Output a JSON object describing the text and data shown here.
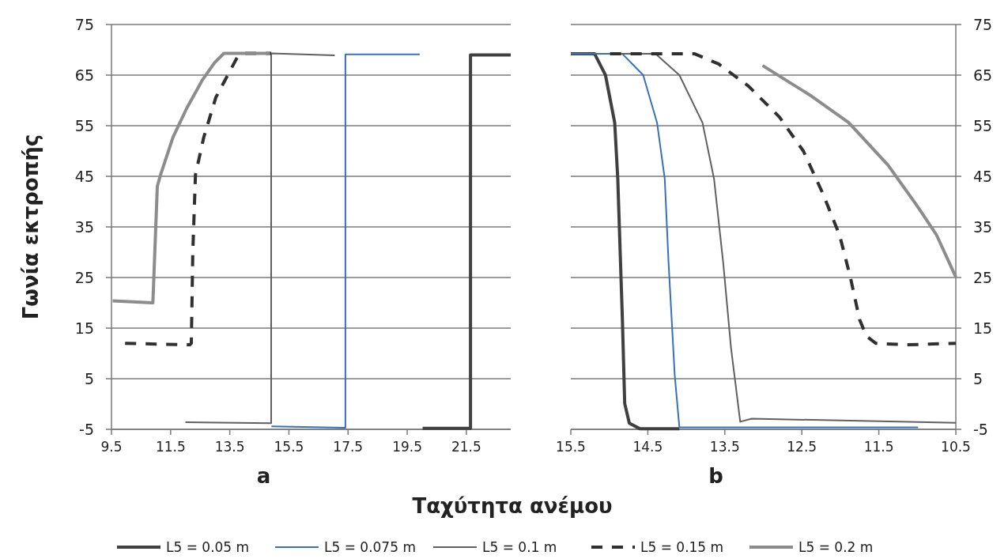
{
  "chart_data": [
    {
      "type": "line",
      "xlabel": "a",
      "ylabel": "Γωνία εκτροπής",
      "annotations": [
        "Ταχύτητα ανέμου"
      ],
      "xlim": [
        9.5,
        23
      ],
      "xticks": [
        9.5,
        11.5,
        13.5,
        15.5,
        17.5,
        19.5,
        21.5
      ],
      "ylim": [
        -5,
        75
      ],
      "yticks": [
        -5,
        5,
        15,
        25,
        35,
        45,
        55,
        65,
        75
      ],
      "grid": "y",
      "legend": "bottom",
      "marker": "none",
      "series": [
        {
          "name": "L5 = 0.05 m",
          "color": "#404040",
          "line_style": "solid",
          "x": [
            20.02,
            21.64,
            21.64,
            23.0
          ],
          "values": [
            -4.8,
            -4.8,
            69.0,
            69.0
          ]
        },
        {
          "name": "L5 = 0.075 m",
          "color": "#3a70b8",
          "line_style": "solid",
          "x": [
            14.91,
            17.41,
            17.41,
            19.92
          ],
          "values": [
            -4.4,
            -4.7,
            69.1,
            69.1
          ]
        },
        {
          "name": "L5 = 0.1 m",
          "color": "#606060",
          "line_style": "solid",
          "x": [
            12.0,
            14.9,
            14.9,
            17.05
          ],
          "values": [
            -3.6,
            -3.8,
            69.3,
            68.9
          ]
        },
        {
          "name": "L5 = 0.15 m",
          "color": "#303030",
          "line_style": "dashed",
          "x": [
            9.96,
            12.15,
            12.2,
            12.25,
            12.34,
            12.62,
            13.03,
            13.45,
            13.76,
            14.0,
            14.9
          ],
          "values": [
            12.0,
            11.7,
            12.0,
            30.0,
            45.3,
            52.7,
            60.6,
            65.2,
            68.6,
            69.3,
            69.3
          ]
        },
        {
          "name": "L5 = 0.2 m",
          "color": "#8c8c8c",
          "line_style": "solid",
          "x": [
            9.54,
            10.9,
            11.05,
            11.16,
            11.58,
            12.04,
            12.57,
            12.98,
            13.3,
            14.86
          ],
          "values": [
            20.4,
            20.0,
            43.0,
            45.3,
            52.7,
            58.4,
            64.0,
            67.4,
            69.3,
            69.3
          ]
        }
      ]
    },
    {
      "type": "line",
      "xlabel": "b",
      "xlim": [
        15.5,
        10.5
      ],
      "xticks": [
        15.5,
        14.5,
        13.5,
        12.5,
        11.5,
        10.5
      ],
      "ylim": [
        -5,
        75
      ],
      "yticks": [
        -5,
        5,
        15,
        25,
        35,
        45,
        55,
        65,
        75
      ],
      "grid": "y",
      "marker": "none",
      "series": [
        {
          "color": "#404040",
          "line_style": "solid",
          "x": [
            15.5,
            15.19,
            15.05,
            14.93,
            14.89,
            14.83,
            14.8,
            14.74,
            14.6,
            14.09
          ],
          "values": [
            69.2,
            69.2,
            65.0,
            55.6,
            44.5,
            16.7,
            0.1,
            -3.8,
            -4.9,
            -4.9
          ]
        },
        {
          "color": "#3a70b8",
          "line_style": "solid",
          "x": [
            15.5,
            14.83,
            14.56,
            14.38,
            14.28,
            14.23,
            14.15,
            14.09,
            10.99
          ],
          "values": [
            69.2,
            69.2,
            65.0,
            55.6,
            44.5,
            27.8,
            5.6,
            -4.6,
            -4.6
          ]
        },
        {
          "color": "#606060",
          "line_style": "solid",
          "x": [
            14.99,
            14.4,
            14.09,
            13.79,
            13.64,
            13.52,
            13.42,
            13.3,
            13.15,
            10.5
          ],
          "values": [
            69.2,
            69.2,
            65.0,
            55.6,
            44.5,
            27.8,
            11.2,
            -3.5,
            -2.9,
            -3.7
          ]
        },
        {
          "color": "#303030",
          "line_style": "dashed",
          "x": [
            14.99,
            13.89,
            13.58,
            13.19,
            12.79,
            12.48,
            12.23,
            12.01,
            11.87,
            11.75,
            11.66,
            11.54,
            11.15,
            10.5
          ],
          "values": [
            69.2,
            69.2,
            67.2,
            62.8,
            56.7,
            50.0,
            41.7,
            33.4,
            25.1,
            16.7,
            13.4,
            12.0,
            11.7,
            12.0
          ]
        },
        {
          "color": "#8c8c8c",
          "line_style": "solid",
          "x": [
            13.01,
            12.4,
            11.89,
            11.38,
            10.99,
            10.75,
            10.5
          ],
          "values": [
            66.9,
            61.1,
            55.6,
            47.2,
            38.9,
            33.4,
            25.1
          ]
        }
      ]
    }
  ]
}
